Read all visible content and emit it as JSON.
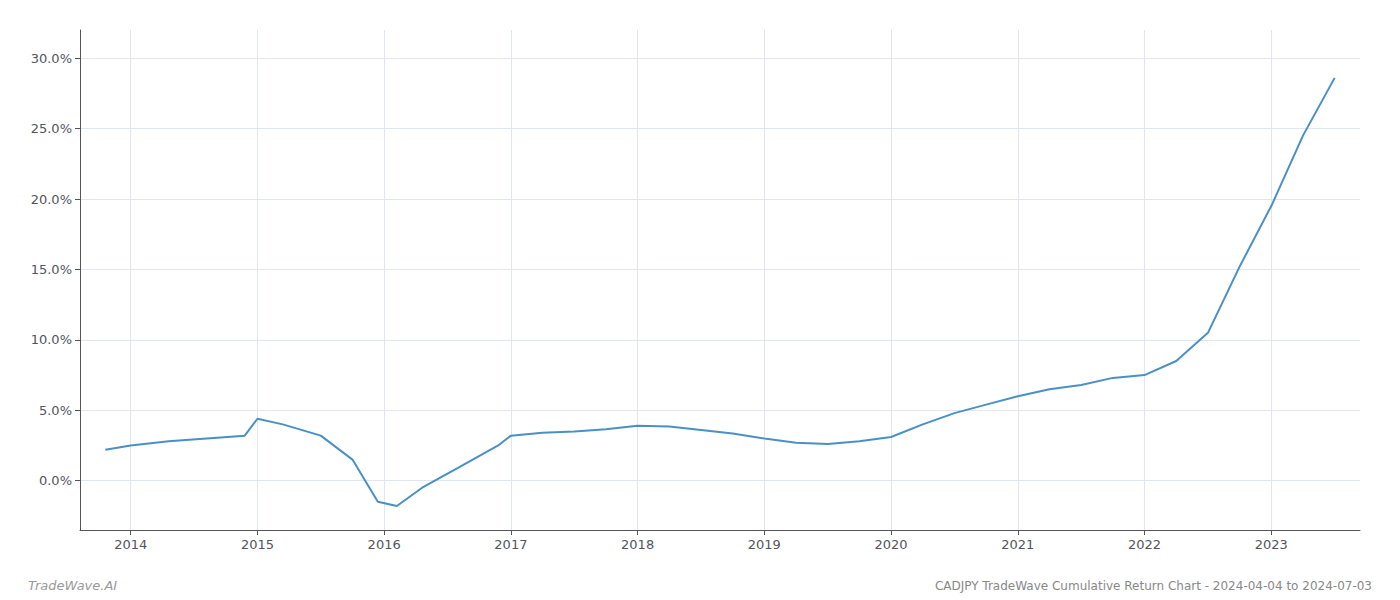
{
  "chart_data": {
    "type": "line",
    "x": [
      2013.8,
      2014.0,
      2014.3,
      2014.6,
      2014.9,
      2015.0,
      2015.2,
      2015.5,
      2015.75,
      2015.95,
      2016.1,
      2016.3,
      2016.6,
      2016.9,
      2017.0,
      2017.25,
      2017.5,
      2017.75,
      2018.0,
      2018.25,
      2018.5,
      2018.75,
      2019.0,
      2019.25,
      2019.5,
      2019.75,
      2020.0,
      2020.25,
      2020.5,
      2020.75,
      2021.0,
      2021.25,
      2021.5,
      2021.75,
      2022.0,
      2022.25,
      2022.5,
      2022.75,
      2023.0,
      2023.25,
      2023.5
    ],
    "values": [
      2.2,
      2.5,
      2.8,
      3.0,
      3.2,
      4.4,
      4.0,
      3.2,
      1.5,
      -1.5,
      -1.8,
      -0.5,
      1.0,
      2.5,
      3.2,
      3.4,
      3.5,
      3.65,
      3.9,
      3.85,
      3.6,
      3.35,
      3.0,
      2.7,
      2.6,
      2.8,
      3.1,
      4.0,
      4.8,
      5.4,
      6.0,
      6.5,
      6.8,
      7.3,
      7.5,
      8.5,
      10.5,
      15.2,
      19.5,
      24.5,
      28.6
    ],
    "color": "#4a90c4",
    "xlim": [
      2013.6,
      2023.7
    ],
    "xticks": [
      2014,
      2015,
      2016,
      2017,
      2018,
      2019,
      2020,
      2021,
      2022,
      2023
    ],
    "ylim": [
      -3.5,
      32.0
    ],
    "yticks": [
      {
        "value": 0.0,
        "label": "0.0%"
      },
      {
        "value": 5.0,
        "label": "5.0%"
      },
      {
        "value": 10.0,
        "label": "10.0%"
      },
      {
        "value": 15.0,
        "label": "15.0%"
      },
      {
        "value": 20.0,
        "label": "20.0%"
      },
      {
        "value": 25.0,
        "label": "25.0%"
      },
      {
        "value": 30.0,
        "label": "30.0%"
      }
    ],
    "grid": true,
    "annotations": [
      "TradeWave.AI",
      "CADJPY TradeWave Cumulative Return Chart - 2024-04-04 to 2024-07-03"
    ]
  }
}
